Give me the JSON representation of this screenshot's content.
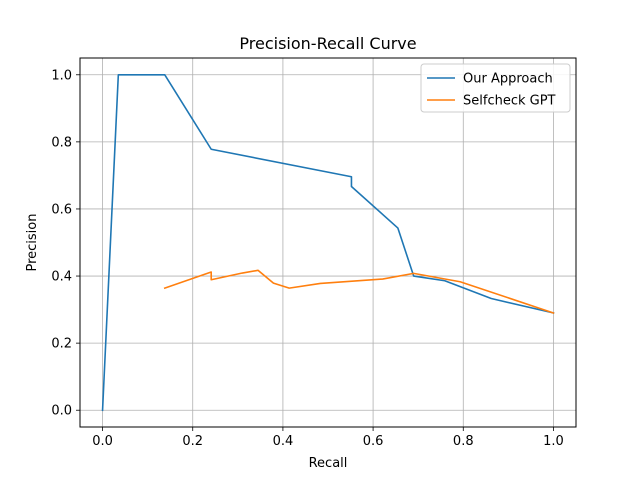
{
  "chart_data": {
    "type": "line",
    "title": "Precision-Recall Curve",
    "xlabel": "Recall",
    "ylabel": "Precision",
    "xlim": [
      -0.05,
      1.05
    ],
    "ylim": [
      -0.05,
      1.05
    ],
    "xticks": [
      0.0,
      0.2,
      0.4,
      0.6,
      0.8,
      1.0
    ],
    "xtick_labels": [
      "0.0",
      "0.2",
      "0.4",
      "0.6",
      "0.8",
      "1.0"
    ],
    "yticks": [
      0.0,
      0.2,
      0.4,
      0.6,
      0.8,
      1.0
    ],
    "ytick_labels": [
      "0.0",
      "0.2",
      "0.4",
      "0.6",
      "0.8",
      "1.0"
    ],
    "grid": true,
    "legend_position": "upper-right",
    "series": [
      {
        "name": "Our Approach",
        "color": "#1f77b4",
        "points": [
          [
            0.0,
            0.0
          ],
          [
            0.035,
            1.0
          ],
          [
            0.138,
            1.0
          ],
          [
            0.241,
            0.778
          ],
          [
            0.552,
            0.696
          ],
          [
            0.552,
            0.667
          ],
          [
            0.655,
            0.543
          ],
          [
            0.69,
            0.4
          ],
          [
            0.759,
            0.386
          ],
          [
            0.862,
            0.333
          ],
          [
            1.0,
            0.29
          ]
        ]
      },
      {
        "name": "Selfcheck GPT",
        "color": "#ff7f0e",
        "points": [
          [
            0.138,
            0.364
          ],
          [
            0.241,
            0.412
          ],
          [
            0.241,
            0.389
          ],
          [
            0.31,
            0.409
          ],
          [
            0.345,
            0.417
          ],
          [
            0.379,
            0.379
          ],
          [
            0.414,
            0.364
          ],
          [
            0.483,
            0.378
          ],
          [
            0.621,
            0.391
          ],
          [
            0.69,
            0.408
          ],
          [
            0.793,
            0.383
          ],
          [
            1.0,
            0.29
          ]
        ]
      }
    ]
  }
}
